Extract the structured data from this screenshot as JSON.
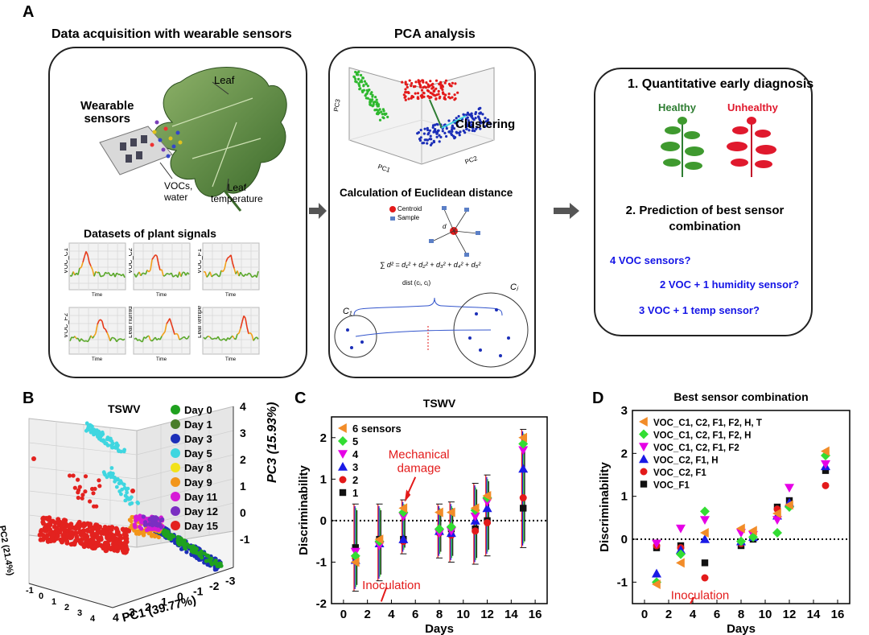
{
  "panelA": {
    "letter": "A",
    "sec1_title": "Data acquisition with  wearable sensors",
    "sec2_title": "PCA analysis",
    "leaf_label": "Leaf",
    "wearable_label": "Wearable\nsensors",
    "voc_label": "VOCs,\nwater",
    "leaftemp_label": "Leaf\ntemperature",
    "datasets_title": "Datasets of plant signals",
    "signal_plots": [
      {
        "ylabel": "VOC_C1",
        "xlabel": "Time"
      },
      {
        "ylabel": "VOC_C2",
        "xlabel": "Time"
      },
      {
        "ylabel": "VOC_F1",
        "xlabel": "Time"
      },
      {
        "ylabel": "VOC_F2",
        "xlabel": "Time"
      },
      {
        "ylabel": "Leaf humidity",
        "xlabel": "Time"
      },
      {
        "ylabel": "Leaf temperature",
        "xlabel": "Time"
      }
    ],
    "clustering_label": "Clustering",
    "pca_axes": {
      "x": "PC1",
      "y": "PC2",
      "z": "PC3"
    },
    "euclid_title": "Calculation of Euclidean distance",
    "centroid_label": "Centroid",
    "sample_label": "Sample",
    "diag_title": "1. Quantitative early diagnosis",
    "healthy_label": "Healthy",
    "unhealthy_label": "Unhealthy",
    "pred_title": "2. Prediction of best sensor\ncombination",
    "q1": "4 VOC sensors?",
    "q2": "2 VOC + 1 humidity sensor?",
    "q3": "3 VOC + 1 temp sensor?",
    "colors": {
      "healthy": "#2e7d32",
      "unhealthy": "#e0192d",
      "question": "#1414e6"
    }
  },
  "panelB": {
    "letter": "B",
    "title": "TSWV",
    "legend": [
      {
        "label": "Day 0",
        "color": "#1fa11f"
      },
      {
        "label": "Day 1",
        "color": "#4a7d2a"
      },
      {
        "label": "Day 3",
        "color": "#1c2fb8"
      },
      {
        "label": "Day 5",
        "color": "#3fd6e0"
      },
      {
        "label": "Day 8",
        "color": "#f2e21a"
      },
      {
        "label": "Day 9",
        "color": "#f2951a"
      },
      {
        "label": "Day 11",
        "color": "#d61ad6"
      },
      {
        "label": "Day 12",
        "color": "#7a2fc2"
      },
      {
        "label": "Day 15",
        "color": "#e3221f"
      }
    ],
    "pc1_label": "PC1 (39.77%)",
    "pc2_label": "PC2 (21.4%)",
    "pc3_label": "PC3 (15.93%)",
    "pc3_ticks": [
      "4",
      "3",
      "2",
      "1",
      "0",
      "-1"
    ],
    "pc1_ticks": [
      "4",
      "3",
      "2",
      "1",
      "0",
      "-1",
      "-2",
      "-3"
    ],
    "pc2_ticks": [
      "4",
      "3",
      "2",
      "1",
      "0",
      "-1"
    ]
  },
  "panelC": {
    "letter": "C",
    "chart_data": {
      "type": "scatter",
      "title": "TSWV",
      "xlabel": "Days",
      "ylabel": "Discriminability",
      "xlim": [
        -1,
        17
      ],
      "ylim": [
        -2,
        2.5
      ],
      "xticks": [
        0,
        2,
        4,
        6,
        8,
        10,
        12,
        14,
        16
      ],
      "yticks": [
        -2,
        -1,
        0,
        1,
        2
      ],
      "series": [
        {
          "name": "6 sensors",
          "color": "#f28c28",
          "marker": "tri-left",
          "x": [
            1,
            3,
            5,
            8,
            9,
            11,
            12,
            15
          ],
          "y": [
            -1.0,
            -0.45,
            0.3,
            0.2,
            0.2,
            0.3,
            0.6,
            2.0
          ]
        },
        {
          "name": "5",
          "color": "#33dd33",
          "marker": "diamond",
          "x": [
            1,
            3,
            5,
            8,
            9,
            11,
            12,
            15
          ],
          "y": [
            -0.85,
            -0.5,
            0.2,
            -0.2,
            -0.15,
            0.25,
            0.55,
            1.85
          ]
        },
        {
          "name": "4",
          "color": "#e600e6",
          "marker": "tri-down",
          "x": [
            1,
            3,
            5,
            8,
            9,
            11,
            12,
            15
          ],
          "y": [
            -0.75,
            -0.6,
            0.1,
            -0.3,
            -0.25,
            0.1,
            0.45,
            1.7
          ]
        },
        {
          "name": "3",
          "color": "#1a1ae6",
          "marker": "tri-up",
          "x": [
            1,
            3,
            5,
            8,
            9,
            11,
            12,
            15
          ],
          "y": [
            -0.95,
            -0.55,
            -0.45,
            -0.25,
            -0.3,
            0.0,
            0.3,
            1.25
          ]
        },
        {
          "name": "2",
          "color": "#e31a1a",
          "marker": "circle",
          "x": [
            1,
            3,
            5,
            8,
            9,
            11,
            12,
            15
          ],
          "y": [
            -0.9,
            -0.5,
            -0.5,
            -0.3,
            -0.35,
            -0.25,
            -0.05,
            0.55
          ]
        },
        {
          "name": "1",
          "color": "#111111",
          "marker": "square",
          "x": [
            1,
            3,
            5,
            8,
            9,
            11,
            12,
            15
          ],
          "y": [
            -0.65,
            -0.45,
            -0.45,
            -0.25,
            -0.2,
            -0.2,
            0.0,
            0.3
          ]
        }
      ],
      "error_bars": {
        "x": [
          1,
          3,
          5,
          8,
          9,
          11,
          12,
          15
        ],
        "low": [
          -1.7,
          -1.45,
          -0.8,
          -0.9,
          -1.0,
          -1.05,
          -0.85,
          -0.65
        ],
        "high": [
          0.4,
          0.4,
          0.5,
          0.4,
          0.45,
          0.9,
          1.1,
          2.2
        ]
      },
      "annotations": [
        {
          "text": "Mechanical\ndamage",
          "x": 6.3,
          "y": 1.5,
          "color": "#e31a1a"
        },
        {
          "text": "Inoculation",
          "x": 4.0,
          "y": -1.65,
          "color": "#e31a1a"
        }
      ],
      "legend_position": "top-left",
      "reference_line": 0
    }
  },
  "panelD": {
    "letter": "D",
    "chart_data": {
      "type": "scatter",
      "title": "Best sensor combination",
      "xlabel": "Days",
      "ylabel": "Discriminability",
      "xlim": [
        -1,
        17
      ],
      "ylim": [
        -1.5,
        3
      ],
      "xticks": [
        0,
        2,
        4,
        6,
        8,
        10,
        12,
        14,
        16
      ],
      "yticks": [
        -1,
        0,
        1,
        2,
        3
      ],
      "series": [
        {
          "name": "VOC_C1, C2, F1, F2, H, T",
          "color": "#f28c28",
          "marker": "tri-left",
          "x": [
            1,
            3,
            5,
            8,
            9,
            11,
            12,
            15
          ],
          "y": [
            -1.05,
            -0.55,
            0.15,
            0.25,
            0.2,
            0.6,
            0.8,
            2.05
          ]
        },
        {
          "name": "VOC_C1, C2, F1, F2, H",
          "color": "#33dd33",
          "marker": "diamond",
          "x": [
            1,
            3,
            5,
            8,
            9,
            11,
            12,
            15
          ],
          "y": [
            -1.0,
            -0.35,
            0.65,
            -0.05,
            0.05,
            0.15,
            0.75,
            1.95
          ]
        },
        {
          "name": "VOC_C1, C2, F1, F2",
          "color": "#e600e6",
          "marker": "tri-down",
          "x": [
            1,
            3,
            5,
            8,
            9,
            11,
            12,
            15
          ],
          "y": [
            -0.1,
            0.25,
            0.45,
            0.15,
            0.1,
            0.45,
            1.2,
            1.75
          ]
        },
        {
          "name": "VOC_C2, F1, H",
          "color": "#1a1ae6",
          "marker": "tri-up",
          "x": [
            1,
            3,
            5,
            8,
            9,
            11,
            12,
            15
          ],
          "y": [
            -0.8,
            -0.25,
            0.0,
            -0.05,
            0.05,
            0.55,
            0.85,
            1.7
          ]
        },
        {
          "name": "VOC_C2, F1",
          "color": "#e31a1a",
          "marker": "circle",
          "x": [
            1,
            3,
            5,
            8,
            9,
            11,
            12,
            15
          ],
          "y": [
            -0.15,
            -0.2,
            -0.9,
            -0.1,
            0.05,
            0.7,
            0.8,
            1.25
          ]
        },
        {
          "name": "VOC_F1",
          "color": "#111111",
          "marker": "square",
          "x": [
            1,
            3,
            5,
            8,
            9,
            11,
            12,
            15
          ],
          "y": [
            -0.2,
            -0.15,
            -0.55,
            -0.15,
            0.0,
            0.75,
            0.9,
            1.6
          ]
        }
      ],
      "annotations": [
        {
          "text": "Inoculation",
          "x": 4.6,
          "y": -1.4,
          "color": "#e31a1a"
        }
      ],
      "legend_position": "top-left",
      "reference_line": 0
    }
  }
}
